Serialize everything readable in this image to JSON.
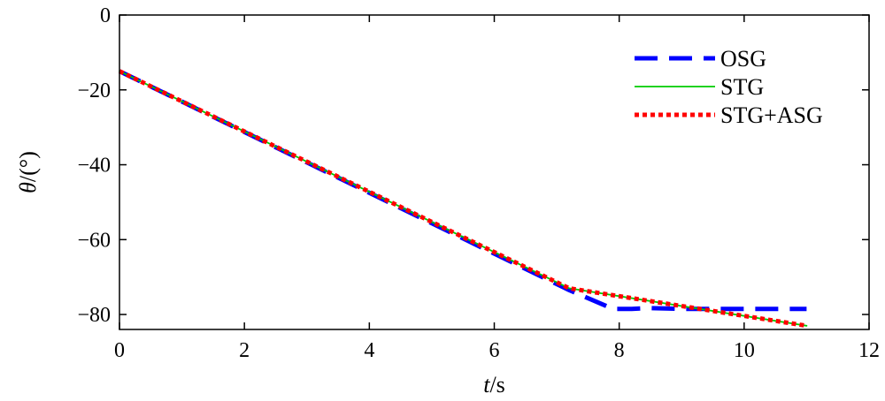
{
  "chart_data": {
    "type": "line",
    "xlabel_var": "t",
    "xlabel_unit": "/s",
    "ylabel_var": "θ",
    "ylabel_unit": "/(°)",
    "xlim": [
      0,
      12
    ],
    "ylim": [
      -84,
      0
    ],
    "xticks": [
      0,
      2,
      4,
      6,
      8,
      10,
      12
    ],
    "yticks": [
      0,
      -20,
      -40,
      -60,
      -80
    ],
    "grid": false,
    "legend_position": "top-right",
    "series": [
      {
        "name": "OSG",
        "color": "#0000ff",
        "style": "dashed",
        "x": [
          0,
          7.2,
          7.9,
          8.2,
          8.5,
          9.0,
          10.0,
          11.0
        ],
        "y": [
          -15,
          -73.5,
          -78.5,
          -78.5,
          -78.3,
          -78.5,
          -78.5,
          -78.5
        ]
      },
      {
        "name": "STG",
        "color": "#00cc00",
        "style": "solid",
        "x": [
          0,
          7.2,
          11.0
        ],
        "y": [
          -15,
          -73,
          -83
        ]
      },
      {
        "name": "STG+ASG",
        "color": "#ff0000",
        "style": "dotted",
        "x": [
          0,
          7.2,
          11.0
        ],
        "y": [
          -15,
          -73,
          -83
        ]
      }
    ]
  }
}
